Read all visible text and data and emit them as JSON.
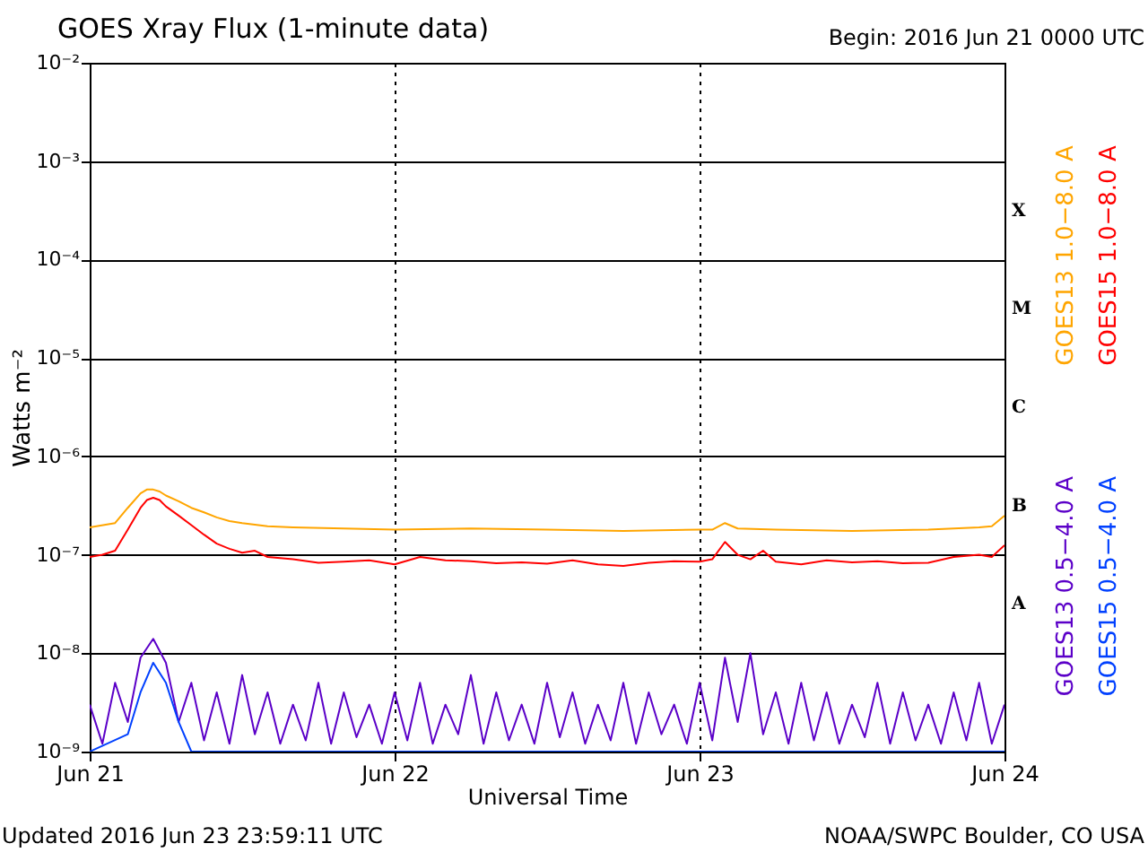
{
  "chart_data": {
    "type": "line",
    "title": "GOES Xray Flux (1-minute data)",
    "xlabel": "Universal Time",
    "ylabel": "Watts m⁻²",
    "log": "y",
    "grid": true,
    "legend": "right",
    "ylim": [
      1e-09,
      0.01
    ],
    "yticks": [
      {
        "value": 1e-09,
        "label": "10⁻⁹"
      },
      {
        "value": 1e-08,
        "label": "10⁻⁸"
      },
      {
        "value": 1e-07,
        "label": "10⁻⁷"
      },
      {
        "value": 1e-06,
        "label": "10⁻⁶"
      },
      {
        "value": 1e-05,
        "label": "10⁻⁵"
      },
      {
        "value": 0.0001,
        "label": "10⁻⁴"
      },
      {
        "value": 0.001,
        "label": "10⁻³"
      },
      {
        "value": 0.01,
        "label": "10⁻²"
      }
    ],
    "xlim": [
      "2016-06-21T00:00",
      "2016-06-24T00:00"
    ],
    "xticks": [
      {
        "value": "2016-06-21T00:00",
        "label": "Jun 21"
      },
      {
        "value": "2016-06-22T00:00",
        "label": "Jun 22"
      },
      {
        "value": "2016-06-23T00:00",
        "label": "Jun 23"
      },
      {
        "value": "2016-06-24T00:00",
        "label": "Jun 24"
      }
    ],
    "series": [
      {
        "name": "GOES13 0.5−4.0 A",
        "color": "#5b00c8",
        "x": [
          "2016-06-21T00:00",
          "2016-06-21T01:00",
          "2016-06-21T02:00",
          "2016-06-21T03:00",
          "2016-06-21T04:00",
          "2016-06-21T05:00",
          "2016-06-21T06:00",
          "2016-06-21T07:00",
          "2016-06-21T08:00",
          "2016-06-21T09:00",
          "2016-06-21T10:00",
          "2016-06-21T11:00",
          "2016-06-21T12:00",
          "2016-06-21T13:00",
          "2016-06-21T14:00",
          "2016-06-21T15:00",
          "2016-06-21T16:00",
          "2016-06-21T17:00",
          "2016-06-21T18:00",
          "2016-06-21T19:00",
          "2016-06-21T20:00",
          "2016-06-21T21:00",
          "2016-06-21T22:00",
          "2016-06-21T23:00",
          "2016-06-22T00:00",
          "2016-06-22T01:00",
          "2016-06-22T02:00",
          "2016-06-22T03:00",
          "2016-06-22T04:00",
          "2016-06-22T05:00",
          "2016-06-22T06:00",
          "2016-06-22T07:00",
          "2016-06-22T08:00",
          "2016-06-22T09:00",
          "2016-06-22T10:00",
          "2016-06-22T11:00",
          "2016-06-22T12:00",
          "2016-06-22T13:00",
          "2016-06-22T14:00",
          "2016-06-22T15:00",
          "2016-06-22T16:00",
          "2016-06-22T17:00",
          "2016-06-22T18:00",
          "2016-06-22T19:00",
          "2016-06-22T20:00",
          "2016-06-22T21:00",
          "2016-06-22T22:00",
          "2016-06-22T23:00",
          "2016-06-23T00:00",
          "2016-06-23T01:00",
          "2016-06-23T02:00",
          "2016-06-23T03:00",
          "2016-06-23T04:00",
          "2016-06-23T05:00",
          "2016-06-23T06:00",
          "2016-06-23T07:00",
          "2016-06-23T08:00",
          "2016-06-23T09:00",
          "2016-06-23T10:00",
          "2016-06-23T11:00",
          "2016-06-23T12:00",
          "2016-06-23T13:00",
          "2016-06-23T14:00",
          "2016-06-23T15:00",
          "2016-06-23T16:00",
          "2016-06-23T17:00",
          "2016-06-23T18:00",
          "2016-06-23T19:00",
          "2016-06-23T20:00",
          "2016-06-23T21:00",
          "2016-06-23T22:00",
          "2016-06-23T23:00",
          "2016-06-24T00:00"
        ],
        "values": [
          3e-09,
          1.2e-09,
          5e-09,
          2e-09,
          9e-09,
          1.4e-08,
          8e-09,
          2e-09,
          5e-09,
          1.3e-09,
          4e-09,
          1.2e-09,
          6e-09,
          1.5e-09,
          4e-09,
          1.2e-09,
          3e-09,
          1.3e-09,
          5e-09,
          1.2e-09,
          4e-09,
          1.4e-09,
          3e-09,
          1.2e-09,
          4e-09,
          1.3e-09,
          5e-09,
          1.2e-09,
          3e-09,
          1.5e-09,
          6e-09,
          1.2e-09,
          4e-09,
          1.3e-09,
          3e-09,
          1.2e-09,
          5e-09,
          1.4e-09,
          4e-09,
          1.2e-09,
          3e-09,
          1.3e-09,
          5e-09,
          1.2e-09,
          4e-09,
          1.5e-09,
          3e-09,
          1.2e-09,
          5e-09,
          1.3e-09,
          9e-09,
          2e-09,
          1e-08,
          1.5e-09,
          4e-09,
          1.2e-09,
          5e-09,
          1.3e-09,
          4e-09,
          1.2e-09,
          3e-09,
          1.4e-09,
          5e-09,
          1.2e-09,
          4e-09,
          1.3e-09,
          3e-09,
          1.2e-09,
          4e-09,
          1.3e-09,
          5e-09,
          1.2e-09,
          3e-09
        ]
      },
      {
        "name": "GOES15 0.5−4.0 A",
        "color": "#0040ff",
        "x": [
          "2016-06-21T00:00",
          "2016-06-21T03:00",
          "2016-06-21T04:00",
          "2016-06-21T05:00",
          "2016-06-21T06:00",
          "2016-06-21T07:00",
          "2016-06-21T08:00",
          "2016-06-21T12:00",
          "2016-06-22T00:00",
          "2016-06-22T12:00",
          "2016-06-23T00:00",
          "2016-06-23T12:00",
          "2016-06-24T00:00"
        ],
        "values": [
          1e-09,
          1.5e-09,
          4e-09,
          8e-09,
          5e-09,
          2e-09,
          1e-09,
          1e-09,
          1e-09,
          1e-09,
          1e-09,
          1e-09,
          1e-09
        ]
      },
      {
        "name": "GOES13 1.0−8.0 A",
        "color": "#ffa500",
        "x": [
          "2016-06-21T00:00",
          "2016-06-21T02:00",
          "2016-06-21T03:00",
          "2016-06-21T04:00",
          "2016-06-21T04:30",
          "2016-06-21T05:00",
          "2016-06-21T05:30",
          "2016-06-21T06:00",
          "2016-06-21T07:00",
          "2016-06-21T08:00",
          "2016-06-21T09:00",
          "2016-06-21T10:00",
          "2016-06-21T11:00",
          "2016-06-21T12:00",
          "2016-06-21T14:00",
          "2016-06-21T16:00",
          "2016-06-21T20:00",
          "2016-06-22T00:00",
          "2016-06-22T06:00",
          "2016-06-22T12:00",
          "2016-06-22T18:00",
          "2016-06-23T00:00",
          "2016-06-23T01:00",
          "2016-06-23T02:00",
          "2016-06-23T03:00",
          "2016-06-23T06:00",
          "2016-06-23T12:00",
          "2016-06-23T18:00",
          "2016-06-23T22:00",
          "2016-06-23T23:00",
          "2016-06-24T00:00"
        ],
        "values": [
          1.9e-07,
          2.1e-07,
          3e-07,
          4.2e-07,
          4.6e-07,
          4.6e-07,
          4.4e-07,
          4e-07,
          3.5e-07,
          3e-07,
          2.7e-07,
          2.4e-07,
          2.2e-07,
          2.1e-07,
          1.95e-07,
          1.9e-07,
          1.85e-07,
          1.8e-07,
          1.85e-07,
          1.8e-07,
          1.75e-07,
          1.8e-07,
          1.8e-07,
          2.1e-07,
          1.85e-07,
          1.8e-07,
          1.75e-07,
          1.8e-07,
          1.9e-07,
          1.95e-07,
          2.5e-07
        ]
      },
      {
        "name": "GOES15 1.0−8.0 A",
        "color": "#ff0000",
        "x": [
          "2016-06-21T00:00",
          "2016-06-21T01:00",
          "2016-06-21T02:00",
          "2016-06-21T03:00",
          "2016-06-21T04:00",
          "2016-06-21T04:30",
          "2016-06-21T05:00",
          "2016-06-21T05:30",
          "2016-06-21T06:00",
          "2016-06-21T07:00",
          "2016-06-21T08:00",
          "2016-06-21T09:00",
          "2016-06-21T10:00",
          "2016-06-21T11:00",
          "2016-06-21T12:00",
          "2016-06-21T13:00",
          "2016-06-21T14:00",
          "2016-06-21T16:00",
          "2016-06-21T18:00",
          "2016-06-21T20:00",
          "2016-06-21T22:00",
          "2016-06-22T00:00",
          "2016-06-22T02:00",
          "2016-06-22T04:00",
          "2016-06-22T06:00",
          "2016-06-22T08:00",
          "2016-06-22T10:00",
          "2016-06-22T12:00",
          "2016-06-22T14:00",
          "2016-06-22T16:00",
          "2016-06-22T18:00",
          "2016-06-22T20:00",
          "2016-06-22T22:00",
          "2016-06-23T00:00",
          "2016-06-23T01:00",
          "2016-06-23T02:00",
          "2016-06-23T03:00",
          "2016-06-23T04:00",
          "2016-06-23T05:00",
          "2016-06-23T06:00",
          "2016-06-23T08:00",
          "2016-06-23T10:00",
          "2016-06-23T12:00",
          "2016-06-23T14:00",
          "2016-06-23T16:00",
          "2016-06-23T18:00",
          "2016-06-23T20:00",
          "2016-06-23T22:00",
          "2016-06-23T23:00",
          "2016-06-24T00:00"
        ],
        "values": [
          9.5e-08,
          1e-07,
          1.1e-07,
          1.8e-07,
          3e-07,
          3.6e-07,
          3.8e-07,
          3.6e-07,
          3.1e-07,
          2.5e-07,
          2e-07,
          1.6e-07,
          1.3e-07,
          1.15e-07,
          1.05e-07,
          1.1e-07,
          9.5e-08,
          9e-08,
          8.3e-08,
          8.5e-08,
          8.8e-08,
          8e-08,
          9.5e-08,
          8.8e-08,
          8.6e-08,
          8.2e-08,
          8.4e-08,
          8.1e-08,
          8.8e-08,
          8e-08,
          7.7e-08,
          8.3e-08,
          8.6e-08,
          8.5e-08,
          9e-08,
          1.35e-07,
          1e-07,
          9e-08,
          1.1e-07,
          8.5e-08,
          8e-08,
          8.8e-08,
          8.4e-08,
          8.6e-08,
          8.2e-08,
          8.3e-08,
          9.5e-08,
          1e-07,
          9.5e-08,
          1.25e-07
        ]
      }
    ],
    "annotations": [
      "Begin:  2016 Jun 21 0000 UTC",
      "Updated 2016 Jun 23 23:59:11 UTC",
      "NOAA/SWPC Boulder, CO USA",
      "X",
      "M",
      "C",
      "B",
      "A"
    ]
  }
}
